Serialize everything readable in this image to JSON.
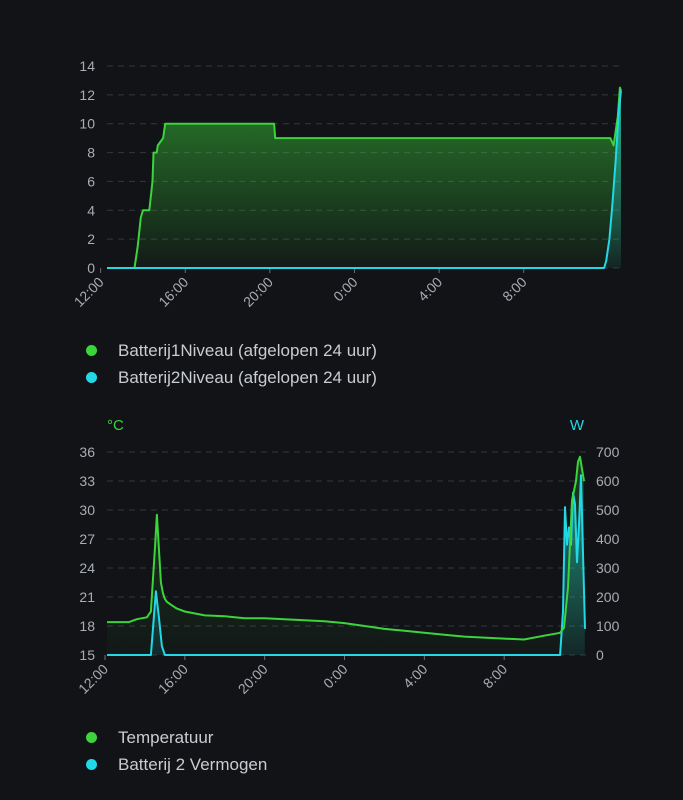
{
  "colors": {
    "green": "#3cd33c",
    "cyan": "#22d8e6",
    "grid": "#34373c",
    "tick": "#a9adb3"
  },
  "chart_data": [
    {
      "type": "area",
      "x_ticks": [
        "16:00",
        "20:00",
        "0:00",
        "4:00",
        "8:00",
        "12:00"
      ],
      "x_range": [
        12.3,
        36.6
      ],
      "ylim": [
        0,
        14
      ],
      "y_ticks": [
        0,
        2,
        4,
        6,
        8,
        10,
        12,
        14
      ],
      "grid": true,
      "legend_position": "bottom-left",
      "series": [
        {
          "name": "Batterij1Niveau (afgelopen 24 uur)",
          "color": "#3cd33c",
          "x": [
            12.3,
            13.6,
            13.75,
            13.9,
            14.0,
            14.05,
            14.3,
            14.45,
            14.5,
            14.65,
            14.7,
            14.95,
            15.05,
            19.35,
            19.4,
            20.2,
            20.25,
            36.1,
            36.25,
            36.45,
            36.55,
            36.6
          ],
          "y": [
            0,
            0,
            1.5,
            3.5,
            4,
            4,
            4,
            6,
            8,
            8,
            8.5,
            9,
            10,
            10,
            10,
            10,
            9,
            9,
            8.5,
            10.5,
            12.5,
            12.3
          ]
        },
        {
          "name": "Batterij2Niveau (afgelopen 24 uur)",
          "color": "#22d8e6",
          "x": [
            12.3,
            35.8,
            35.9,
            36.05,
            36.2,
            36.35,
            36.5,
            36.6
          ],
          "y": [
            0,
            0,
            0.5,
            2,
            4.5,
            7.5,
            11,
            12.3
          ]
        }
      ]
    },
    {
      "type": "line",
      "x_ticks": [
        "16:00",
        "20:00",
        "0:00",
        "4:00",
        "8:00",
        "12:00"
      ],
      "x_range": [
        12.1,
        36.1
      ],
      "y_left": {
        "unit": "°C",
        "ticks": [
          15,
          18,
          21,
          24,
          27,
          30,
          33,
          36
        ],
        "ylim": [
          15,
          36
        ]
      },
      "y_right": {
        "unit": "W",
        "ticks": [
          0,
          100,
          200,
          300,
          400,
          500,
          600,
          700
        ],
        "ylim": [
          0,
          700
        ]
      },
      "grid": true,
      "legend_position": "bottom-left",
      "series": [
        {
          "name": "Temperatuur",
          "axis": "left",
          "color": "#3cd33c",
          "x": [
            12.1,
            13.2,
            13.6,
            14.1,
            14.3,
            14.5,
            14.6,
            14.7,
            14.8,
            14.9,
            15.0,
            15.1,
            15.3,
            15.6,
            16.0,
            17.0,
            18.0,
            19.0,
            20.0,
            21.0,
            22.0,
            23.0,
            24.0,
            25.0,
            26.0,
            27.0,
            28.0,
            29.0,
            30.0,
            31.0,
            32.0,
            33.0,
            34.0,
            34.8,
            35.0,
            35.2,
            35.4,
            35.6,
            35.7,
            35.8,
            36.0
          ],
          "y": [
            18.4,
            18.4,
            18.7,
            18.9,
            19.5,
            26.0,
            29.5,
            26.0,
            22.5,
            21.4,
            20.8,
            20.5,
            20.2,
            19.8,
            19.5,
            19.1,
            19.0,
            18.8,
            18.8,
            18.7,
            18.6,
            18.5,
            18.3,
            18.0,
            17.7,
            17.5,
            17.3,
            17.1,
            16.9,
            16.8,
            16.7,
            16.6,
            17.0,
            17.3,
            17.8,
            22.0,
            31.0,
            33.0,
            35.0,
            35.5,
            33.0
          ]
        },
        {
          "name": "Batterij 2 Vermogen",
          "axis": "right",
          "color": "#22d8e6",
          "x": [
            12.1,
            14.3,
            14.55,
            14.7,
            14.85,
            15.0,
            34.8,
            34.95,
            35.05,
            35.15,
            35.25,
            35.35,
            35.45,
            35.55,
            35.65,
            35.75,
            35.85,
            35.95,
            36.05
          ],
          "y": [
            0,
            0,
            220,
            130,
            30,
            0,
            0,
            150,
            510,
            380,
            440,
            380,
            560,
            520,
            320,
            450,
            620,
            350,
            90
          ]
        }
      ]
    }
  ]
}
